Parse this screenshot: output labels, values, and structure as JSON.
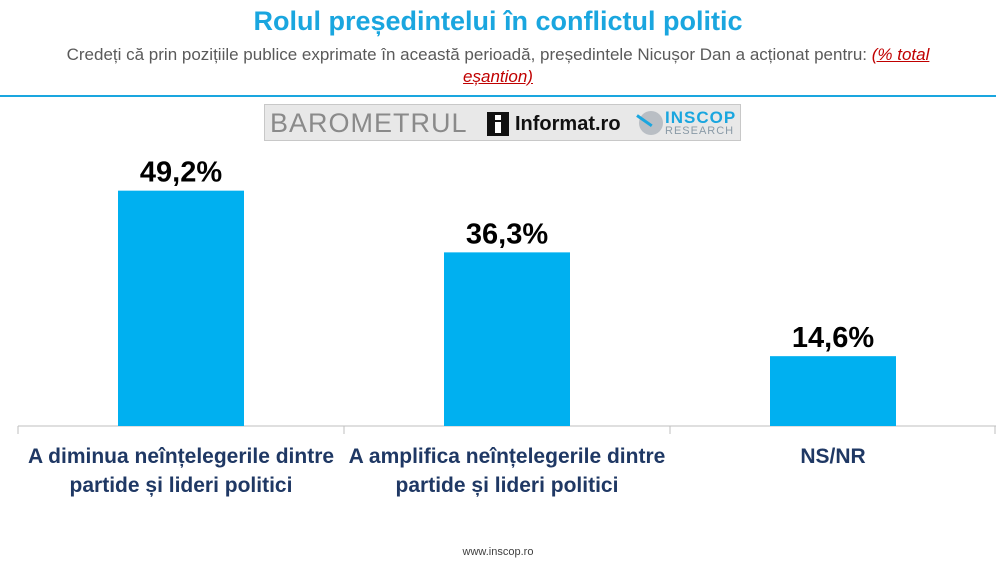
{
  "header": {
    "title": "Rolul președintelui în conflictul politic",
    "subtitle": "Credeți că prin pozițiile publice exprimate în această perioadă, președintele Nicușor Dan a acționat pentru:",
    "note": "(% total eșantion)"
  },
  "banner": {
    "barometer": "BAROMETRUL",
    "informat": "Informat.ro",
    "inscop": "INSCOP",
    "inscop_sub": "RESEARCH"
  },
  "colors": {
    "bar": "#00b0f0",
    "title": "#1aa6df",
    "category": "#1f3864",
    "value_label": "#000000"
  },
  "chart_data": {
    "type": "bar",
    "categories": [
      "A diminua neînțelegerile dintre partide și lideri politici",
      "A amplifica neînțelegerile dintre partide și lideri politici",
      "NS/NR"
    ],
    "values": [
      49.2,
      36.3,
      14.6
    ],
    "value_labels": [
      "49,2%",
      "36,3%",
      "14,6%"
    ],
    "ylim": [
      0,
      60
    ],
    "grid": false,
    "legend": "none"
  },
  "footer": {
    "url": "www.inscop.ro"
  }
}
